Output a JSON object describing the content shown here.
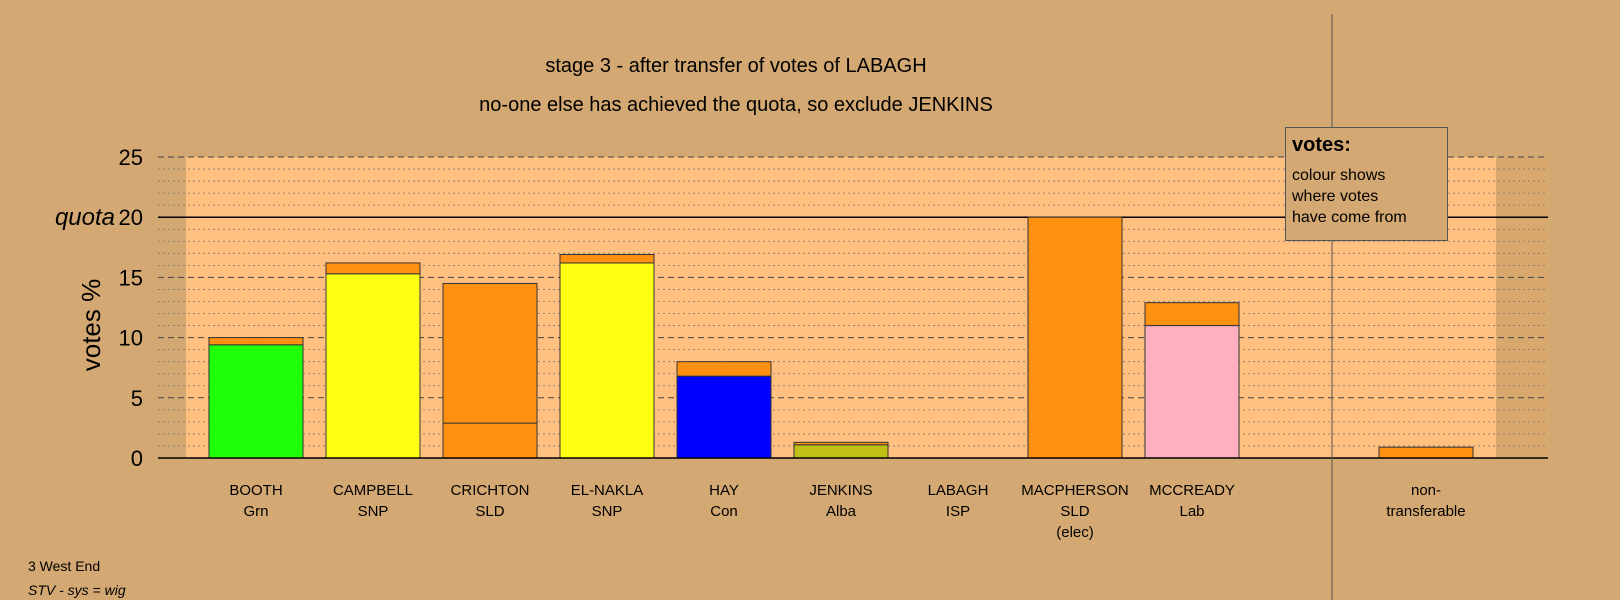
{
  "chart_data": {
    "type": "bar",
    "stacked": true,
    "title": "stage 3 - after transfer of votes of LABAGH",
    "subtitle": "no-one else has achieved the quota, so exclude JENKINS",
    "ylabel": "votes %",
    "ylim": [
      0,
      25
    ],
    "yticks": [
      0,
      5,
      10,
      15,
      20,
      25
    ],
    "quota": 20,
    "quota_label": "quota",
    "grid": true,
    "candidates": [
      {
        "name": "BOOTH",
        "party": "Grn",
        "extra": "",
        "own": 9.4,
        "own_color": "#1eff0a",
        "transfer": 0.6
      },
      {
        "name": "CAMPBELL",
        "party": "SNP",
        "extra": "",
        "own": 15.3,
        "own_color": "#ffff14",
        "transfer": 0.9
      },
      {
        "name": "CRICHTON",
        "party": "SLD",
        "extra": "",
        "own": 2.9,
        "own_color": "#ff9010",
        "transfer": 11.6
      },
      {
        "name": "EL-NAKLA",
        "party": "SNP",
        "extra": "",
        "own": 16.2,
        "own_color": "#ffff14",
        "transfer": 0.7
      },
      {
        "name": "HAY",
        "party": "Con",
        "extra": "",
        "own": 6.8,
        "own_color": "#0000ff",
        "transfer": 1.2
      },
      {
        "name": "JENKINS",
        "party": "Alba",
        "extra": "",
        "own": 1.1,
        "own_color": "#bfbf14",
        "transfer": 0.2
      },
      {
        "name": "LABAGH",
        "party": "ISP",
        "extra": "",
        "own": 0,
        "own_color": "#ff9010",
        "transfer": 0
      },
      {
        "name": "MACPHERSON",
        "party": "SLD",
        "extra": "(elec)",
        "own": 20.0,
        "own_color": "#ff9010",
        "transfer": 0
      },
      {
        "name": "MCCREADY",
        "party": "Lab",
        "extra": "",
        "own": 11.0,
        "own_color": "#ffafc0",
        "transfer": 1.9
      }
    ],
    "nontransferable": {
      "line1": "non-",
      "line2": "transferable",
      "value": 0.9
    },
    "transfer_color": "#ff9010",
    "legend_position": "top-right"
  },
  "legend": {
    "title": "votes:",
    "line1": "colour shows",
    "line2": "where votes",
    "line3": "have come from"
  },
  "footer": {
    "ward": "3 West End",
    "system": "STV - sys = wig"
  },
  "colors": {
    "background": "#d4a872",
    "plot_area": "#ffc080"
  }
}
